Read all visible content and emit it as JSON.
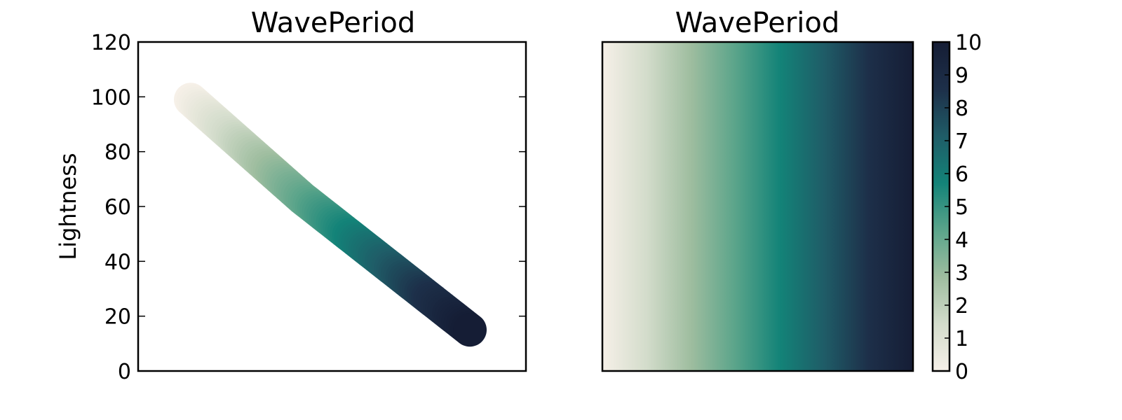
{
  "chart_data": [
    {
      "type": "scatter",
      "title": "WavePeriod",
      "xlabel": "",
      "ylabel": "Lightness",
      "ylim": [
        0,
        120
      ],
      "yticks": [
        0,
        20,
        40,
        60,
        80,
        100,
        120
      ],
      "xticks_visible": false,
      "colormap": [
        "#f6f0e8",
        "#d3dccb",
        "#9ebd9f",
        "#5aa48a",
        "#138378",
        "#1f5c67",
        "#1d2f49",
        "#151d35"
      ],
      "x": [
        0.0,
        0.1,
        0.2,
        0.3,
        0.4,
        0.5,
        0.6,
        0.7,
        0.8,
        0.9,
        1.0
      ],
      "y": [
        99,
        90,
        81,
        72,
        63,
        55,
        47,
        39,
        31,
        23,
        15
      ],
      "grid": false
    },
    {
      "type": "heatmap",
      "title": "WavePeriod",
      "colorbar_ticks": [
        "0",
        "1",
        "2",
        "3",
        "4",
        "5",
        "6",
        "7",
        "8",
        "9",
        "10"
      ],
      "vmin": 0,
      "vmax": 10,
      "orientation": "horizontal gradient, low values left",
      "grid": false
    }
  ]
}
